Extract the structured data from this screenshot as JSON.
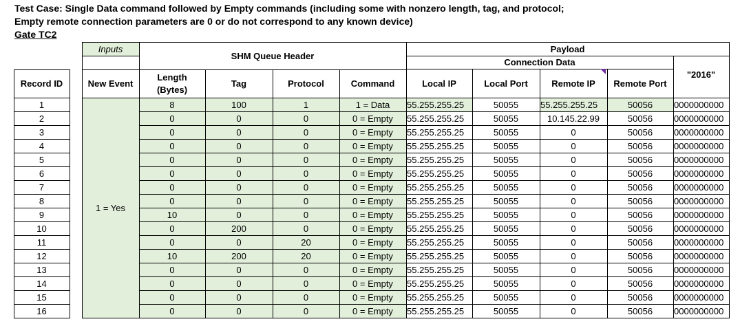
{
  "title": {
    "line1": "Test Case: Single Data command followed by Empty commands (including some with nonzero length, tag, and protocol;",
    "line2": "Empty remote connection parameters are 0 or do not correspond to any known device)",
    "gate": "Gate TC2"
  },
  "groups": {
    "inputs": "Inputs",
    "shm_queue_header": "SHM Queue Header",
    "payload": "Payload",
    "connection_data": "Connection Data"
  },
  "columns": {
    "record_id": "Record ID",
    "new_event": "New Event",
    "length_line1": "Length",
    "length_line2": "(Bytes)",
    "tag": "Tag",
    "protocol": "Protocol",
    "command": "Command",
    "local_ip": "Local IP",
    "local_port": "Local Port",
    "remote_ip": "Remote IP",
    "remote_port": "Remote Port",
    "payload_2016": "\"2016\""
  },
  "new_event_value": "1 = Yes",
  "rows": [
    {
      "id": "1",
      "length": "8",
      "tag": "100",
      "protocol": "1",
      "command": "1 = Data",
      "local_ip": "55.255.255.25",
      "local_port": "50055",
      "remote_ip": "55.255.255.25",
      "remote_port": "50056",
      "payload": "0000000000"
    },
    {
      "id": "2",
      "length": "0",
      "tag": "0",
      "protocol": "0",
      "command": "0 = Empty",
      "local_ip": "55.255.255.25",
      "local_port": "50055",
      "remote_ip": "10.145.22.99",
      "remote_port": "50056",
      "payload": "0000000000"
    },
    {
      "id": "3",
      "length": "0",
      "tag": "0",
      "protocol": "0",
      "command": "0 = Empty",
      "local_ip": "55.255.255.25",
      "local_port": "50055",
      "remote_ip": "0",
      "remote_port": "50056",
      "payload": "0000000000"
    },
    {
      "id": "4",
      "length": "0",
      "tag": "0",
      "protocol": "0",
      "command": "0 = Empty",
      "local_ip": "55.255.255.25",
      "local_port": "50055",
      "remote_ip": "0",
      "remote_port": "50056",
      "payload": "0000000000"
    },
    {
      "id": "5",
      "length": "0",
      "tag": "0",
      "protocol": "0",
      "command": "0 = Empty",
      "local_ip": "55.255.255.25",
      "local_port": "50055",
      "remote_ip": "0",
      "remote_port": "50056",
      "payload": "0000000000"
    },
    {
      "id": "6",
      "length": "0",
      "tag": "0",
      "protocol": "0",
      "command": "0 = Empty",
      "local_ip": "55.255.255.25",
      "local_port": "50055",
      "remote_ip": "0",
      "remote_port": "50056",
      "payload": "0000000000"
    },
    {
      "id": "7",
      "length": "0",
      "tag": "0",
      "protocol": "0",
      "command": "0 = Empty",
      "local_ip": "55.255.255.25",
      "local_port": "50055",
      "remote_ip": "0",
      "remote_port": "50056",
      "payload": "0000000000"
    },
    {
      "id": "8",
      "length": "0",
      "tag": "0",
      "protocol": "0",
      "command": "0 = Empty",
      "local_ip": "55.255.255.25",
      "local_port": "50055",
      "remote_ip": "0",
      "remote_port": "50056",
      "payload": "0000000000"
    },
    {
      "id": "9",
      "length": "10",
      "tag": "0",
      "protocol": "0",
      "command": "0 = Empty",
      "local_ip": "55.255.255.25",
      "local_port": "50055",
      "remote_ip": "0",
      "remote_port": "50056",
      "payload": "0000000000"
    },
    {
      "id": "10",
      "length": "0",
      "tag": "200",
      "protocol": "0",
      "command": "0 = Empty",
      "local_ip": "55.255.255.25",
      "local_port": "50055",
      "remote_ip": "0",
      "remote_port": "50056",
      "payload": "0000000000"
    },
    {
      "id": "11",
      "length": "0",
      "tag": "0",
      "protocol": "20",
      "command": "0 = Empty",
      "local_ip": "55.255.255.25",
      "local_port": "50055",
      "remote_ip": "0",
      "remote_port": "50056",
      "payload": "0000000000"
    },
    {
      "id": "12",
      "length": "10",
      "tag": "200",
      "protocol": "20",
      "command": "0 = Empty",
      "local_ip": "55.255.255.25",
      "local_port": "50055",
      "remote_ip": "0",
      "remote_port": "50056",
      "payload": "0000000000"
    },
    {
      "id": "13",
      "length": "0",
      "tag": "0",
      "protocol": "0",
      "command": "0 = Empty",
      "local_ip": "55.255.255.25",
      "local_port": "50055",
      "remote_ip": "0",
      "remote_port": "50056",
      "payload": "0000000000"
    },
    {
      "id": "14",
      "length": "0",
      "tag": "0",
      "protocol": "0",
      "command": "0 = Empty",
      "local_ip": "55.255.255.25",
      "local_port": "50055",
      "remote_ip": "0",
      "remote_port": "50056",
      "payload": "0000000000"
    },
    {
      "id": "15",
      "length": "0",
      "tag": "0",
      "protocol": "0",
      "command": "0 = Empty",
      "local_ip": "55.255.255.25",
      "local_port": "50055",
      "remote_ip": "0",
      "remote_port": "50056",
      "payload": "0000000000"
    },
    {
      "id": "16",
      "length": "0",
      "tag": "0",
      "protocol": "0",
      "command": "0 = Empty",
      "local_ip": "55.255.255.25",
      "local_port": "50055",
      "remote_ip": "0",
      "remote_port": "50056",
      "payload": "0000000000"
    }
  ],
  "colors": {
    "shaded_cell": "#e2efda",
    "grid_line": "#000000",
    "light_grid_line": "#b4b4b4",
    "comment_marker": "#7030a0"
  }
}
